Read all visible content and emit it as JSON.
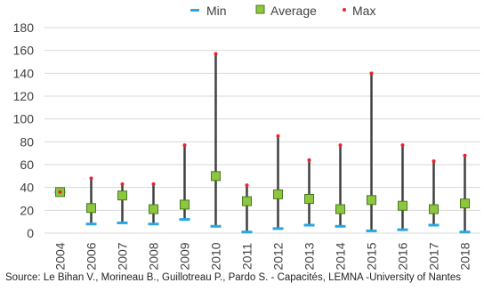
{
  "chart_data": {
    "type": "stock-range",
    "categories": [
      "2004",
      "2006",
      "2007",
      "2008",
      "2009",
      "2010",
      "2011",
      "2012",
      "2013",
      "2014",
      "2015",
      "2016",
      "2017",
      "2018"
    ],
    "series": [
      {
        "name": "Min",
        "values": [
          36,
          8,
          9,
          8,
          12,
          6,
          1,
          4,
          7,
          6,
          2,
          3,
          7,
          1
        ]
      },
      {
        "name": "Average",
        "values": [
          36,
          22,
          33,
          21,
          25,
          50,
          28,
          34,
          30,
          21,
          29,
          24,
          21,
          26
        ]
      },
      {
        "name": "Max",
        "values": [
          36,
          48,
          43,
          43,
          77,
          157,
          42,
          85,
          64,
          77,
          140,
          77,
          63,
          68
        ]
      }
    ],
    "ylim": [
      0,
      180
    ],
    "yticks": [
      0,
      20,
      40,
      60,
      80,
      100,
      120,
      140,
      160,
      180
    ],
    "grid": true,
    "legend_position": "top",
    "colors": {
      "min": "#29a8e0",
      "average_fill": "#8dc63f",
      "average_border": "#4a7a1e",
      "max": "#e8232a",
      "range_line": "#404040",
      "grid": "#d9d9d9"
    }
  },
  "legend": {
    "min": "Min",
    "average": "Average",
    "max": "Max"
  },
  "source": "Source: Le Bihan V., Morineau B., Guillotreau P., Pardo S. - Capacités, LEMNA -University of Nantes"
}
